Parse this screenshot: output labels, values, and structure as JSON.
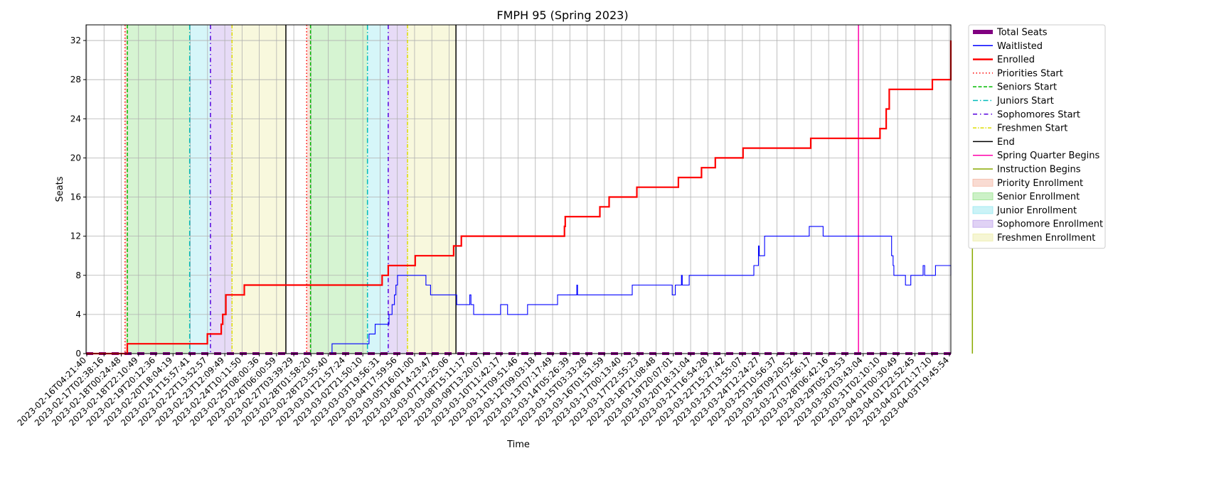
{
  "chart_data": {
    "type": "line",
    "title": "FMPH 95 (Spring 2023)",
    "xlabel": "Time",
    "ylabel": "Seats",
    "ylim": [
      0,
      33.6
    ],
    "yticks": [
      0,
      4,
      8,
      12,
      16,
      20,
      24,
      28,
      32
    ],
    "grid": true,
    "legend_position": "outside-right",
    "x_start": "2023-02-16T04:21:40",
    "x_end": "2023-04-04T00:00:00",
    "xtick_labels": [
      "2023-02-16T04:21:40",
      "2023-02-17T02:38:16",
      "2023-02-18T00:24:48",
      "2023-02-18T22:10:49",
      "2023-02-19T20:12:36",
      "2023-02-20T18:04:19",
      "2023-02-21T15:57:41",
      "2023-02-22T13:52:57",
      "2023-02-23T12:09:49",
      "2023-02-24T10:11:50",
      "2023-02-25T08:00:36",
      "2023-02-26T06:00:59",
      "2023-02-27T03:39:29",
      "2023-02-28T01:58:20",
      "2023-02-28T23:55:40",
      "2023-03-01T21:57:24",
      "2023-03-02T21:50:10",
      "2023-03-03T19:56:31",
      "2023-03-04T17:59:56",
      "2023-03-05T16:01:00",
      "2023-03-06T14:23:47",
      "2023-03-07T12:25:06",
      "2023-03-08T15:11:17",
      "2023-03-09T13:20:07",
      "2023-03-10T11:42:17",
      "2023-03-11T09:51:46",
      "2023-03-12T09:03:18",
      "2023-03-13T07:17:49",
      "2023-03-14T05:26:39",
      "2023-03-15T03:33:28",
      "2023-03-16T01:51:59",
      "2023-03-17T00:13:40",
      "2023-03-17T22:55:23",
      "2023-03-18T21:08:48",
      "2023-03-19T20:07:01",
      "2023-03-20T18:31:04",
      "2023-03-21T16:54:28",
      "2023-03-22T15:27:42",
      "2023-03-23T13:55:07",
      "2023-03-24T12:24:27",
      "2023-03-25T10:56:37",
      "2023-03-26T09:20:52",
      "2023-03-27T07:56:17",
      "2023-03-28T06:42:16",
      "2023-03-29T05:23:53",
      "2023-03-30T03:43:04",
      "2023-03-31T02:10:10",
      "2023-04-01T00:30:49",
      "2023-04-01T22:52:45",
      "2023-04-02T21:17:10",
      "2023-04-03T19:45:54"
    ],
    "series": [
      {
        "name": "Total Seats",
        "color": "#800080",
        "style": "dashed-thick",
        "points": [
          [
            "2023-02-16T04:21:40",
            0
          ],
          [
            "2023-04-04T00:00:00",
            0
          ]
        ]
      },
      {
        "name": "Waitlisted",
        "color": "#0000ff",
        "style": "solid",
        "points": [
          [
            "2023-02-16T04:21:40",
            0
          ],
          [
            "2023-03-01T12:00:00",
            0
          ],
          [
            "2023-03-01T12:00:00",
            1
          ],
          [
            "2023-03-03T12:00:00",
            1
          ],
          [
            "2023-03-03T12:00:00",
            2
          ],
          [
            "2023-03-03T20:00:00",
            2
          ],
          [
            "2023-03-03T20:00:00",
            3
          ],
          [
            "2023-03-04T14:00:00",
            3
          ],
          [
            "2023-03-04T14:00:00",
            4
          ],
          [
            "2023-03-04T18:00:00",
            4
          ],
          [
            "2023-03-04T18:00:00",
            5
          ],
          [
            "2023-03-04T21:00:00",
            5
          ],
          [
            "2023-03-04T21:00:00",
            6
          ],
          [
            "2023-03-04T23:00:00",
            6
          ],
          [
            "2023-03-04T23:00:00",
            7
          ],
          [
            "2023-03-05T01:00:00",
            7
          ],
          [
            "2023-03-05T01:00:00",
            8
          ],
          [
            "2023-03-06T14:00:00",
            8
          ],
          [
            "2023-03-06T14:00:00",
            7
          ],
          [
            "2023-03-06T20:00:00",
            7
          ],
          [
            "2023-03-06T20:00:00",
            6
          ],
          [
            "2023-03-08T06:00:00",
            6
          ],
          [
            "2023-03-08T06:00:00",
            5
          ],
          [
            "2023-03-08T23:00:00",
            5
          ],
          [
            "2023-03-08T23:00:00",
            6
          ],
          [
            "2023-03-09T00:30:00",
            6
          ],
          [
            "2023-03-09T00:30:00",
            5
          ],
          [
            "2023-03-09T04:00:00",
            5
          ],
          [
            "2023-03-09T04:00:00",
            4
          ],
          [
            "2023-03-10T15:00:00",
            4
          ],
          [
            "2023-03-10T15:00:00",
            5
          ],
          [
            "2023-03-11T00:00:00",
            5
          ],
          [
            "2023-03-11T00:00:00",
            4
          ],
          [
            "2023-03-12T02:00:00",
            4
          ],
          [
            "2023-03-12T02:00:00",
            5
          ],
          [
            "2023-03-13T17:00:00",
            5
          ],
          [
            "2023-03-13T17:00:00",
            6
          ],
          [
            "2023-03-14T18:00:00",
            6
          ],
          [
            "2023-03-14T18:00:00",
            7
          ],
          [
            "2023-03-14T19:00:00",
            7
          ],
          [
            "2023-03-14T19:00:00",
            6
          ],
          [
            "2023-03-17T18:00:00",
            6
          ],
          [
            "2023-03-17T18:00:00",
            7
          ],
          [
            "2023-03-19T22:00:00",
            7
          ],
          [
            "2023-03-19T22:00:00",
            6
          ],
          [
            "2023-03-20T02:00:00",
            6
          ],
          [
            "2023-03-20T02:00:00",
            7
          ],
          [
            "2023-03-20T10:00:00",
            7
          ],
          [
            "2023-03-20T10:00:00",
            8
          ],
          [
            "2023-03-20T11:00:00",
            8
          ],
          [
            "2023-03-20T11:00:00",
            7
          ],
          [
            "2023-03-20T20:00:00",
            7
          ],
          [
            "2023-03-20T20:00:00",
            8
          ],
          [
            "2023-03-24T08:00:00",
            8
          ],
          [
            "2023-03-24T08:00:00",
            9
          ],
          [
            "2023-03-24T14:00:00",
            9
          ],
          [
            "2023-03-24T14:00:00",
            11
          ],
          [
            "2023-03-24T15:00:00",
            11
          ],
          [
            "2023-03-24T15:00:00",
            10
          ],
          [
            "2023-03-24T22:00:00",
            10
          ],
          [
            "2023-03-24T22:00:00",
            12
          ],
          [
            "2023-03-27T08:00:00",
            12
          ],
          [
            "2023-03-27T08:00:00",
            13
          ],
          [
            "2023-03-28T02:00:00",
            13
          ],
          [
            "2023-03-28T02:00:00",
            12
          ],
          [
            "2023-03-31T19:00:00",
            12
          ],
          [
            "2023-03-31T19:00:00",
            10
          ],
          [
            "2023-03-31T21:00:00",
            10
          ],
          [
            "2023-03-31T21:00:00",
            9
          ],
          [
            "2023-03-31T22:00:00",
            9
          ],
          [
            "2023-03-31T22:00:00",
            8
          ],
          [
            "2023-04-01T13:00:00",
            8
          ],
          [
            "2023-04-01T13:00:00",
            7
          ],
          [
            "2023-04-01T20:00:00",
            7
          ],
          [
            "2023-04-01T20:00:00",
            8
          ],
          [
            "2023-04-02T12:00:00",
            8
          ],
          [
            "2023-04-02T12:00:00",
            9
          ],
          [
            "2023-04-02T14:00:00",
            9
          ],
          [
            "2023-04-02T14:00:00",
            8
          ],
          [
            "2023-04-03T04:00:00",
            8
          ],
          [
            "2023-04-03T04:00:00",
            9
          ],
          [
            "2023-04-04T08:00:00",
            9
          ],
          [
            "2023-04-04T08:00:00",
            8
          ],
          [
            "2023-04-05T16:00:00",
            8
          ],
          [
            "2023-04-05T16:00:00",
            9
          ],
          [
            "2023-04-05T17:00:00",
            9
          ],
          [
            "2023-04-05T17:00:00",
            8
          ],
          [
            "2023-04-06T00:00:00",
            8
          ]
        ]
      },
      {
        "name": "Enrolled",
        "color": "#ff0000",
        "style": "solid-thick",
        "points": [
          [
            "2023-02-16T04:21:40",
            0
          ],
          [
            "2023-02-18T10:00:00",
            0
          ],
          [
            "2023-02-18T10:00:00",
            1
          ],
          [
            "2023-02-22T18:00:00",
            1
          ],
          [
            "2023-02-22T18:00:00",
            2
          ],
          [
            "2023-02-23T12:00:00",
            2
          ],
          [
            "2023-02-23T12:00:00",
            3
          ],
          [
            "2023-02-23T14:00:00",
            3
          ],
          [
            "2023-02-23T14:00:00",
            4
          ],
          [
            "2023-02-23T18:00:00",
            4
          ],
          [
            "2023-02-23T18:00:00",
            6
          ],
          [
            "2023-02-24T18:00:00",
            6
          ],
          [
            "2023-02-24T18:00:00",
            7
          ],
          [
            "2023-03-04T05:00:00",
            7
          ],
          [
            "2023-03-04T05:00:00",
            8
          ],
          [
            "2023-03-04T13:00:00",
            8
          ],
          [
            "2023-03-04T13:00:00",
            9
          ],
          [
            "2023-03-06T00:00:00",
            9
          ],
          [
            "2023-03-06T00:00:00",
            10
          ],
          [
            "2023-03-08T02:00:00",
            10
          ],
          [
            "2023-03-08T02:00:00",
            11
          ],
          [
            "2023-03-08T12:00:00",
            11
          ],
          [
            "2023-03-08T12:00:00",
            12
          ],
          [
            "2023-03-14T02:00:00",
            12
          ],
          [
            "2023-03-14T02:00:00",
            13
          ],
          [
            "2023-03-14T03:00:00",
            13
          ],
          [
            "2023-03-14T03:00:00",
            14
          ],
          [
            "2023-03-16T00:00:00",
            14
          ],
          [
            "2023-03-16T00:00:00",
            15
          ],
          [
            "2023-03-16T12:00:00",
            15
          ],
          [
            "2023-03-16T12:00:00",
            16
          ],
          [
            "2023-03-18T00:00:00",
            16
          ],
          [
            "2023-03-18T00:00:00",
            17
          ],
          [
            "2023-03-20T06:00:00",
            17
          ],
          [
            "2023-03-20T06:00:00",
            18
          ],
          [
            "2023-03-21T12:00:00",
            18
          ],
          [
            "2023-03-21T12:00:00",
            19
          ],
          [
            "2023-03-22T06:00:00",
            19
          ],
          [
            "2023-03-22T06:00:00",
            20
          ],
          [
            "2023-03-23T18:00:00",
            20
          ],
          [
            "2023-03-23T18:00:00",
            21
          ],
          [
            "2023-03-27T10:00:00",
            21
          ],
          [
            "2023-03-27T10:00:00",
            22
          ],
          [
            "2023-03-31T04:00:00",
            22
          ],
          [
            "2023-03-31T04:00:00",
            23
          ],
          [
            "2023-03-31T12:00:00",
            23
          ],
          [
            "2023-03-31T12:00:00",
            25
          ],
          [
            "2023-03-31T16:00:00",
            25
          ],
          [
            "2023-03-31T16:00:00",
            27
          ],
          [
            "2023-04-03T00:00:00",
            27
          ],
          [
            "2023-04-03T00:00:00",
            28
          ],
          [
            "2023-04-05T00:00:00",
            28
          ],
          [
            "2023-04-05T00:00:00",
            29
          ],
          [
            "2023-04-05T18:00:00",
            29
          ],
          [
            "2023-04-05T18:00:00",
            30
          ],
          [
            "2023-04-05T22:00:00",
            30
          ],
          [
            "2023-04-05T22:00:00",
            31
          ],
          [
            "2023-04-06T00:00:00",
            31
          ],
          [
            "2023-04-06T00:00:00",
            32
          ],
          [
            "2023-04-06T08:00:00",
            32
          ]
        ]
      }
    ],
    "vertical_markers": [
      {
        "name": "Priorities Start",
        "color": "#ff0000",
        "style": "dotted",
        "times": [
          "2023-02-18T07:00:00",
          "2023-02-28T03:00:00"
        ]
      },
      {
        "name": "Seniors Start",
        "color": "#00bb00",
        "style": "dashed",
        "times": [
          "2023-02-18T10:00:00",
          "2023-02-28T08:00:00"
        ]
      },
      {
        "name": "Juniors Start",
        "color": "#00bbbb",
        "style": "dashdot",
        "times": [
          "2023-02-21T19:00:00",
          "2023-03-03T10:00:00"
        ]
      },
      {
        "name": "Sophomores Start",
        "color": "#5500dd",
        "style": "dashdotdot",
        "times": [
          "2023-02-22T22:00:00",
          "2023-03-04T13:00:00"
        ]
      },
      {
        "name": "Freshmen Start",
        "color": "#dddd00",
        "style": "dashdotted",
        "times": [
          "2023-02-24T02:00:00",
          "2023-03-05T14:00:00"
        ]
      },
      {
        "name": "End",
        "color": "#000000",
        "style": "solid",
        "times": [
          "2023-02-27T00:00:00",
          "2023-03-08T05:00:00"
        ]
      },
      {
        "name": "Spring Quarter Begins",
        "color": "#ff00aa",
        "style": "solid",
        "times": [
          "2023-03-30T00:00:00"
        ]
      },
      {
        "name": "Instruction Begins",
        "color": "#88aa00",
        "style": "solid",
        "times": [
          "2023-04-05T04:00:00"
        ]
      }
    ],
    "shaded_regions": [
      {
        "name": "Priority Enrollment",
        "color": "#f4b8a6",
        "ranges": [
          [
            "2023-02-18T07:00:00",
            "2023-02-18T10:00:00"
          ],
          [
            "2023-02-28T03:00:00",
            "2023-02-28T08:00:00"
          ]
        ]
      },
      {
        "name": "Senior Enrollment",
        "color": "#99e38f",
        "ranges": [
          [
            "2023-02-18T10:00:00",
            "2023-02-21T19:00:00"
          ],
          [
            "2023-02-28T08:00:00",
            "2023-03-03T10:00:00"
          ]
        ]
      },
      {
        "name": "Junior Enrollment",
        "color": "#98e8f0",
        "ranges": [
          [
            "2023-02-21T19:00:00",
            "2023-02-22T22:00:00"
          ],
          [
            "2023-03-03T10:00:00",
            "2023-03-04T13:00:00"
          ]
        ]
      },
      {
        "name": "Sophomore Enrollment",
        "color": "#c2a6ec",
        "ranges": [
          [
            "2023-02-22T22:00:00",
            "2023-02-24T02:00:00"
          ],
          [
            "2023-03-04T13:00:00",
            "2023-03-05T14:00:00"
          ]
        ]
      },
      {
        "name": "Freshmen Enrollment",
        "color": "#eeeeaa",
        "ranges": [
          [
            "2023-02-24T02:00:00",
            "2023-02-27T00:00:00"
          ],
          [
            "2023-03-05T14:00:00",
            "2023-03-08T05:00:00"
          ]
        ]
      }
    ],
    "legend": [
      {
        "label": "Total Seats",
        "kind": "line",
        "color": "#800080",
        "style": "thick"
      },
      {
        "label": "Waitlisted",
        "kind": "line",
        "color": "#0000ff",
        "style": "solid"
      },
      {
        "label": "Enrolled",
        "kind": "line",
        "color": "#ff0000",
        "style": "medium"
      },
      {
        "label": "Priorities Start",
        "kind": "line",
        "color": "#ff0000",
        "style": "dotted"
      },
      {
        "label": "Seniors Start",
        "kind": "line",
        "color": "#00bb00",
        "style": "dashed"
      },
      {
        "label": "Juniors Start",
        "kind": "line",
        "color": "#00bbbb",
        "style": "dashdot"
      },
      {
        "label": "Sophomores Start",
        "kind": "line",
        "color": "#5500dd",
        "style": "dashdotdot"
      },
      {
        "label": "Freshmen Start",
        "kind": "line",
        "color": "#dddd00",
        "style": "dashdotted"
      },
      {
        "label": "End",
        "kind": "line",
        "color": "#000000",
        "style": "solid"
      },
      {
        "label": "Spring Quarter Begins",
        "kind": "line",
        "color": "#ff00aa",
        "style": "solid"
      },
      {
        "label": "Instruction Begins",
        "kind": "line",
        "color": "#88aa00",
        "style": "solid"
      },
      {
        "label": "Priority Enrollment",
        "kind": "patch",
        "color": "#f4b8a6"
      },
      {
        "label": "Senior Enrollment",
        "kind": "patch",
        "color": "#99e38f"
      },
      {
        "label": "Junior Enrollment",
        "kind": "patch",
        "color": "#98e8f0"
      },
      {
        "label": "Sophomore Enrollment",
        "kind": "patch",
        "color": "#c2a6ec"
      },
      {
        "label": "Freshmen Enrollment",
        "kind": "patch",
        "color": "#eeeeaa"
      }
    ]
  }
}
